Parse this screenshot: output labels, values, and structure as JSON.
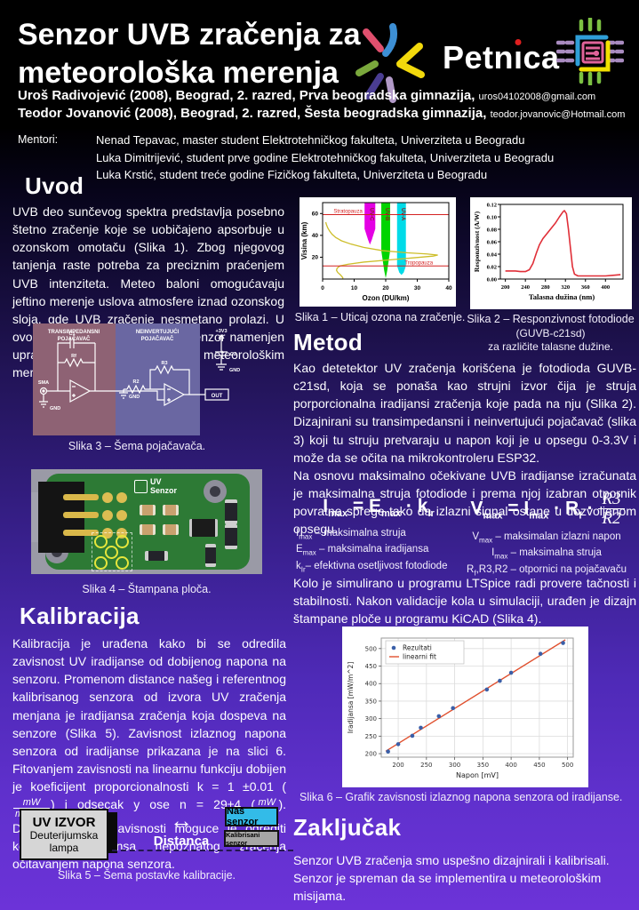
{
  "header": {
    "title_line1": "Senzor UVB zračenja za",
    "title_line2": "meteorološka merenja",
    "logo_text": "Petnica",
    "logo_text_parts": [
      "Petn",
      "ı",
      "ca"
    ],
    "authors": [
      {
        "text": "Uroš Radivojević (2008), Beograd, 2. razred, Prva beogradska gimnazija,",
        "email": "uros04102008@gmail.com"
      },
      {
        "text": "Teodor Jovanović (2008), Beograd, 2. razred, Šesta beogradska gimnazija,",
        "email": "teodor.jovanovic@Hotmail.com"
      }
    ],
    "mentors_label": "Mentori:",
    "mentors": [
      "Nenad Tepavac, master student Elektrotehničkog fakulteta, Univerziteta u Beogradu",
      "Luka Dimitrijević, student prve godine Elektrotehničkog fakulteta, Univerziteta u Beogradu",
      "Luka Krstić, student treće godine Fizičkog fakulteta, Univerziteta u Beogradu"
    ]
  },
  "uvod": {
    "heading": "Uvod",
    "body": "UVB deo sunčevog spektra predstavlja posebno štetno zračenje koje se uobičajeno apsorbuje u ozonskom omotaču (Slika 1). Zbog njegovog tanjenja raste potreba za preciznim praćenjem UVB intenziteta. Meteo baloni omogućavaju jeftino merenje uslova atmosfere iznad ozonskog sloja, gde UVB zračenje nesmetano prolazi. U ovom projektu razvijen je UVB senzor namenjen upravo takvim visinskim meteorološkim merenjima."
  },
  "metod": {
    "heading": "Metod",
    "p1": "Kao detetektor UV zračenja korišćena je fotodioda GUVB-c21sd, koja se ponaša kao strujni izvor čija je struja porporcionalna iradijansi zračenja koje pada na nju (Slika 2). Dizajnirani su transimpedansni i neinvertujući pojačavač (slika 3) koji tu struju pretvaraju u napon koji je u opsegu 0-3.3V i može da se očita na mikrokontroleru ESP32.",
    "p2": "Na osnovu maksimalno očekivane UVB iradijanse izračunata je maksimalna struja fotodiode i prema njoj izabran otpornik povratne sprege tako da izlazni signal ostane u dozvoljenom opsegu.",
    "p3": "Kolo je simulirano u programu LTSpice radi provere tačnosti i stabilnosti. Nakon validacije kola u simulaciji, urađen je dizajn štampane ploče u programu KiCAD (Slika 4)."
  },
  "equations": {
    "eq1": {
      "i": "I",
      "i_sub": "max",
      "eq": " = ",
      "e": "E",
      "e_sub": "max",
      "dot": " · ",
      "k": "k",
      "k_sub": "Ir"
    },
    "eq1_legend": [
      {
        "b": "I",
        "s": "max",
        "r": " – maksimalna struja"
      },
      {
        "b": "E",
        "s": "max",
        "r": " – maksimalna iradijansa"
      },
      {
        "b": "k",
        "s": "Ir",
        "r": "– efektivna osetljivost fotodiode"
      }
    ],
    "eq2": {
      "v": "V",
      "v_sub": "max",
      "eq": " = ",
      "i": "I",
      "i_sub": "max",
      "dot1": " · ",
      "r": "R",
      "r_sub": "f",
      "dot2": " · ",
      "num": "R3",
      "den": "R2"
    },
    "eq2_legend": [
      {
        "b": "V",
        "s": "max",
        "r": " – maksimalan izlazni napon"
      },
      {
        "b": "I",
        "s": "max",
        "r": " – maksimalna struja"
      },
      {
        "b": "R",
        "s": "f",
        "r": ",R3,R2 – otpornici na pojačavaču"
      }
    ]
  },
  "kalibracija": {
    "heading": "Kalibracija",
    "p1": "Kalibracija je urađena kako bi se odredila zavisnost UV iradijanse od dobijenog napona na senzoru. Promenom distance našeg i referentnog kalibrisanog senzora od izvora UV zračenja menjana je iradijansa zračenja koja dospeva na senzore (Slika 5). Zavisnost izlaznog napona senzora od iradijanse prikazana je na slici 6. Fitovanjem zavisnosti na linearnu funkciju dobijen je koeficijent proporcionalnosti k = 1 ±0.01 (",
    "frac1_num": "mW",
    "frac1_den": "m^2mV",
    "p2": ") i odsecak y ose n = 29±4 (",
    "frac2_num": "mW",
    "frac2_den": "m^2",
    "p3": "). Dobijanjem ove zavisnosti moguce je odrediti koja je iradijansa nepoznatog zracenja očitavanjem napona senzora."
  },
  "zakljucak": {
    "heading": "Zaključak",
    "body": "Senzor UVB zračenja smo uspešno dizajnirali i kalibrisali. Senzor je spreman da se implementira u meteorološkim misijama."
  },
  "figures": {
    "slika1": {
      "caption": "Slika 1 – Uticaj ozona na zračenje."
    },
    "slika2": {
      "caption_l1": "Slika 2 – Responzivnost fotodiode",
      "caption_l2": "(GUVB-c21sd)",
      "caption_l3": "za različite talasne dužine."
    },
    "slika3": {
      "caption": "Slika 3 – Šema pojačavača.",
      "labels": {
        "block1_l1": "TRANSIMPEDANSNI",
        "block1_l2": "POJAČAVAČ",
        "block2_l1": "NEINVERTUJUĆI",
        "block2_l2": "POJAČAVAČ",
        "c1": "C1",
        "rf": "Rf",
        "sma": "SMA",
        "gnd1": "GND",
        "r3": "R3",
        "r2": "R2",
        "gnd2": "GND",
        "out": "OUT",
        "v33": "+3V3",
        "c2": "C2",
        "gnd3": "GND"
      }
    },
    "slika4": {
      "caption": "Slika 4 – Štampana ploča.",
      "silk_l1": "UV",
      "silk_l2": "Senzor"
    },
    "slika5": {
      "caption": "Slika 5 – Šema postavke kalibracije.",
      "labels": {
        "source_title": "UV IZVOR",
        "source_sub1": "Deuterijumska",
        "source_sub2": "lampa",
        "arrow": "↔",
        "distance": "Distanca",
        "our_sensor": "Naš senzor",
        "calibrated_sensor": "Kalibrisani senzor"
      }
    },
    "slika6": {
      "caption": "Slika 6 – Grafik zavisnosti izlaznog napona senzora od iradijanse."
    }
  },
  "chart_data": [
    {
      "id": "slika1",
      "type": "area",
      "title": "",
      "xlabel": "Ozon (DU/km)",
      "ylabel": "Visina (km)",
      "xlim": [
        0,
        40
      ],
      "ylim": [
        0,
        70
      ],
      "xticks": [
        0,
        10,
        20,
        30,
        40
      ],
      "yticks": [
        20,
        40,
        60
      ],
      "line_color": "#cdbe2a",
      "hline_color": "#d42222",
      "band_label_color": "#8b1a1a",
      "ozone_profile": [
        [
          1,
          52
        ],
        [
          1.2,
          50
        ],
        [
          1.6,
          47
        ],
        [
          2.2,
          44
        ],
        [
          3,
          41
        ],
        [
          4.2,
          38
        ],
        [
          6,
          35
        ],
        [
          9,
          32
        ],
        [
          13,
          29
        ],
        [
          19,
          26
        ],
        [
          27,
          24
        ],
        [
          33,
          23
        ],
        [
          36.5,
          22
        ],
        [
          35,
          21
        ],
        [
          29,
          19.5
        ],
        [
          21,
          17.5
        ],
        [
          13,
          15.5
        ],
        [
          8,
          13.5
        ],
        [
          5.5,
          12
        ],
        [
          4.6,
          10
        ],
        [
          4.4,
          8
        ],
        [
          4.8,
          6
        ],
        [
          5.6,
          4
        ],
        [
          6.2,
          2
        ],
        [
          6.5,
          0.5
        ]
      ],
      "bands": [
        {
          "name": "UV-C",
          "color": "#e400e4",
          "polygon": [
            [
              13.3,
              70
            ],
            [
              16.7,
              70
            ],
            [
              16.7,
              46
            ],
            [
              15.6,
              36
            ],
            [
              15,
              31.5
            ],
            [
              14.4,
              36
            ],
            [
              13.3,
              46
            ]
          ]
        },
        {
          "name": "UV-B",
          "color": "#00d400",
          "polygon": [
            [
              18.6,
              70
            ],
            [
              21.4,
              70
            ],
            [
              21.4,
              26
            ],
            [
              20.5,
              8
            ],
            [
              20,
              0.8
            ],
            [
              19.5,
              8
            ],
            [
              18.6,
              26
            ]
          ]
        },
        {
          "name": "UV-A",
          "color": "#00dbe8",
          "polygon": [
            [
              23.6,
              70
            ],
            [
              26.4,
              70
            ],
            [
              26.4,
              12
            ],
            [
              25.7,
              6
            ],
            [
              25,
              3.8
            ],
            [
              24.3,
              6
            ],
            [
              23.6,
              12
            ]
          ]
        }
      ],
      "hlines": [
        {
          "y": 59,
          "label": "Stratopauza",
          "label_x": 3.5
        },
        {
          "y": 12,
          "label": "Tropopauza",
          "label_x": 26
        }
      ]
    },
    {
      "id": "slika2",
      "type": "line",
      "title": "",
      "xlabel": "Talasna dužina (nm)",
      "ylabel": "Responzivnost (A/W)",
      "xlim": [
        190,
        435
      ],
      "ylim": [
        0,
        0.12
      ],
      "xticks": [
        "200",
        "240",
        "280",
        "320",
        "360",
        "400"
      ],
      "yticks": [
        "0.00",
        "0.02",
        "0.04",
        "0.06",
        "0.08",
        "0.10",
        "0.12"
      ],
      "curve_color": "#e02f38",
      "points": [
        [
          200,
          0.013
        ],
        [
          210,
          0.013
        ],
        [
          220,
          0.013
        ],
        [
          230,
          0.012
        ],
        [
          240,
          0.012
        ],
        [
          248,
          0.015
        ],
        [
          255,
          0.025
        ],
        [
          262,
          0.042
        ],
        [
          268,
          0.055
        ],
        [
          275,
          0.065
        ],
        [
          282,
          0.072
        ],
        [
          290,
          0.08
        ],
        [
          300,
          0.09
        ],
        [
          308,
          0.1
        ],
        [
          315,
          0.108
        ],
        [
          318,
          0.11
        ],
        [
          322,
          0.105
        ],
        [
          326,
          0.08
        ],
        [
          330,
          0.05
        ],
        [
          334,
          0.02
        ],
        [
          338,
          0.008
        ],
        [
          345,
          0.005
        ],
        [
          360,
          0.005
        ],
        [
          380,
          0.005
        ],
        [
          400,
          0.005
        ],
        [
          415,
          0.006
        ],
        [
          430,
          0.007
        ]
      ]
    },
    {
      "id": "slika6",
      "type": "scatter",
      "title": "",
      "xlabel": "Napon [mV]",
      "ylabel": "Iradijansa [mW/m^2]",
      "xlim": [
        170,
        510
      ],
      "ylim": [
        190,
        530
      ],
      "xticks": [
        200,
        250,
        300,
        350,
        400,
        450,
        500
      ],
      "yticks": [
        200,
        250,
        300,
        350,
        400,
        450,
        500
      ],
      "grid": true,
      "legend": [
        "Rezultati",
        "linearni fit"
      ],
      "point_color": "#3a5fa8",
      "fit_color": "#e0502e",
      "points": [
        [
          182,
          206
        ],
        [
          200,
          227
        ],
        [
          225,
          251
        ],
        [
          240,
          274
        ],
        [
          272,
          307
        ],
        [
          297,
          330
        ],
        [
          357,
          383
        ],
        [
          380,
          408
        ],
        [
          400,
          431
        ],
        [
          452,
          485
        ],
        [
          492,
          516
        ]
      ],
      "fit": {
        "k": 1,
        "n": 29,
        "x_range": [
          178,
          496
        ]
      }
    }
  ]
}
